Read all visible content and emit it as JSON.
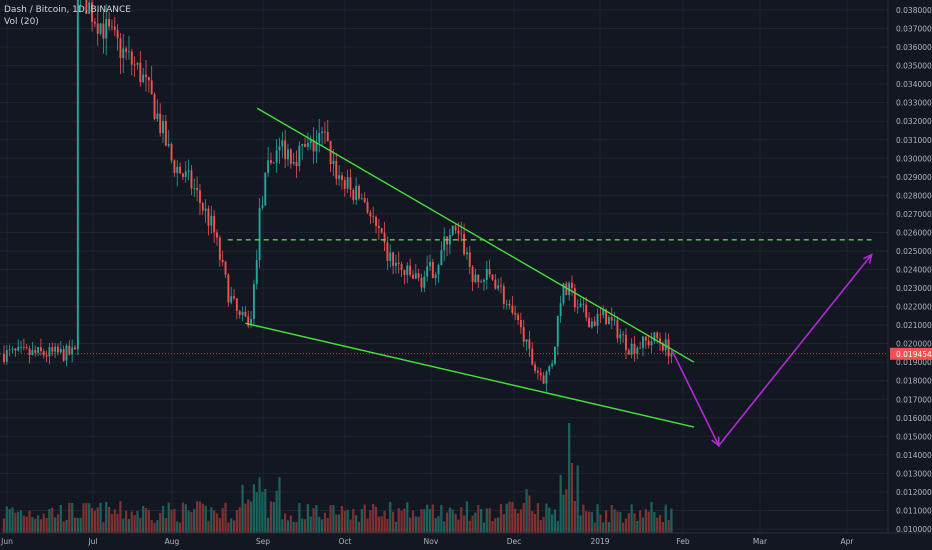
{
  "chart_data": {
    "type": "candlestick",
    "title": "Dash / Bitcoin, 1D, BINANCE",
    "indicator": "Vol (20)",
    "x_ticks": [
      "Jun",
      "Jul",
      "Aug",
      "Sep",
      "Oct",
      "Nov",
      "Dec",
      "2019",
      "Feb",
      "Mar",
      "Apr"
    ],
    "y_ticks": [
      "0.038000",
      "0.037000",
      "0.036000",
      "0.035000",
      "0.034000",
      "0.033000",
      "0.032000",
      "0.031000",
      "0.030000",
      "0.029000",
      "0.028000",
      "0.027000",
      "0.026000",
      "0.025000",
      "0.024000",
      "0.023000",
      "0.022000",
      "0.021000",
      "0.020000",
      "0.019000",
      "0.018000",
      "0.017000",
      "0.016000",
      "0.015000",
      "0.014000",
      "0.013000",
      "0.012000",
      "0.011000",
      "0.010000"
    ],
    "ylim": [
      0.0099,
      0.0386
    ],
    "current_price": "0.019454",
    "price_path": [
      [
        "2018-06-25",
        0.0395
      ],
      [
        "2018-07-01",
        0.0378
      ],
      [
        "2018-07-10",
        0.0362
      ],
      [
        "2018-07-20",
        0.0345
      ],
      [
        "2018-07-25",
        0.0328
      ],
      [
        "2018-08-01",
        0.0298
      ],
      [
        "2018-08-08",
        0.0285
      ],
      [
        "2018-08-15",
        0.0262
      ],
      [
        "2018-08-20",
        0.0228
      ],
      [
        "2018-08-24",
        0.0213
      ],
      [
        "2018-08-28",
        0.0212
      ],
      [
        "2018-08-31",
        0.0272
      ],
      [
        "2018-09-03",
        0.0295
      ],
      [
        "2018-09-07",
        0.0308
      ],
      [
        "2018-09-12",
        0.0302
      ],
      [
        "2018-09-18",
        0.0305
      ],
      [
        "2018-09-23",
        0.0312
      ],
      [
        "2018-09-28",
        0.0292
      ],
      [
        "2018-10-03",
        0.0282
      ],
      [
        "2018-10-08",
        0.0278
      ],
      [
        "2018-10-12",
        0.0262
      ],
      [
        "2018-10-16",
        0.0248
      ],
      [
        "2018-10-22",
        0.0238
      ],
      [
        "2018-10-28",
        0.0234
      ],
      [
        "2018-11-03",
        0.0242
      ],
      [
        "2018-11-08",
        0.0262
      ],
      [
        "2018-11-13",
        0.0252
      ],
      [
        "2018-11-17",
        0.0232
      ],
      [
        "2018-11-21",
        0.0236
      ],
      [
        "2018-11-25",
        0.0234
      ],
      [
        "2018-11-29",
        0.0218
      ],
      [
        "2018-12-04",
        0.0205
      ],
      [
        "2018-12-08",
        0.0188
      ],
      [
        "2018-12-12",
        0.0181
      ],
      [
        "2018-12-15",
        0.0192
      ],
      [
        "2018-12-18",
        0.0228
      ],
      [
        "2018-12-21",
        0.0228
      ],
      [
        "2018-12-25",
        0.0218
      ],
      [
        "2018-12-29",
        0.0212
      ],
      [
        "2019-01-03",
        0.0215
      ],
      [
        "2019-01-08",
        0.0206
      ],
      [
        "2019-01-12",
        0.0198
      ],
      [
        "2019-01-17",
        0.02
      ],
      [
        "2019-01-22",
        0.0203
      ],
      [
        "2019-01-26",
        0.0198
      ],
      [
        "2019-01-28",
        0.019454
      ]
    ],
    "annotations": {
      "upper_trendline": [
        [
          "2018-08-30",
          0.0327
        ],
        [
          "2019-02-05",
          0.019
        ]
      ],
      "lower_trendline": [
        [
          "2018-08-26",
          0.0211
        ],
        [
          "2019-02-05",
          0.0155
        ]
      ],
      "resistance_level": {
        "value": 0.0256,
        "from": "2018-08-20",
        "to": "2019-04-10",
        "style": "dashed"
      },
      "projection_path": [
        [
          "2019-01-28",
          0.0196
        ],
        [
          "2019-02-14",
          0.0145
        ],
        [
          "2019-04-10",
          0.0248
        ]
      ]
    },
    "colors": {
      "background": "#131722",
      "up": "#26a69a",
      "down": "#ef5350",
      "volume_up": "#1e6b62",
      "volume_down": "#8d3434",
      "trendline": "#45e03b",
      "projection": "#b02ad6",
      "grid": "#1f2332",
      "price_label_bg": "#ef5350",
      "text": "#b2b5be"
    }
  }
}
